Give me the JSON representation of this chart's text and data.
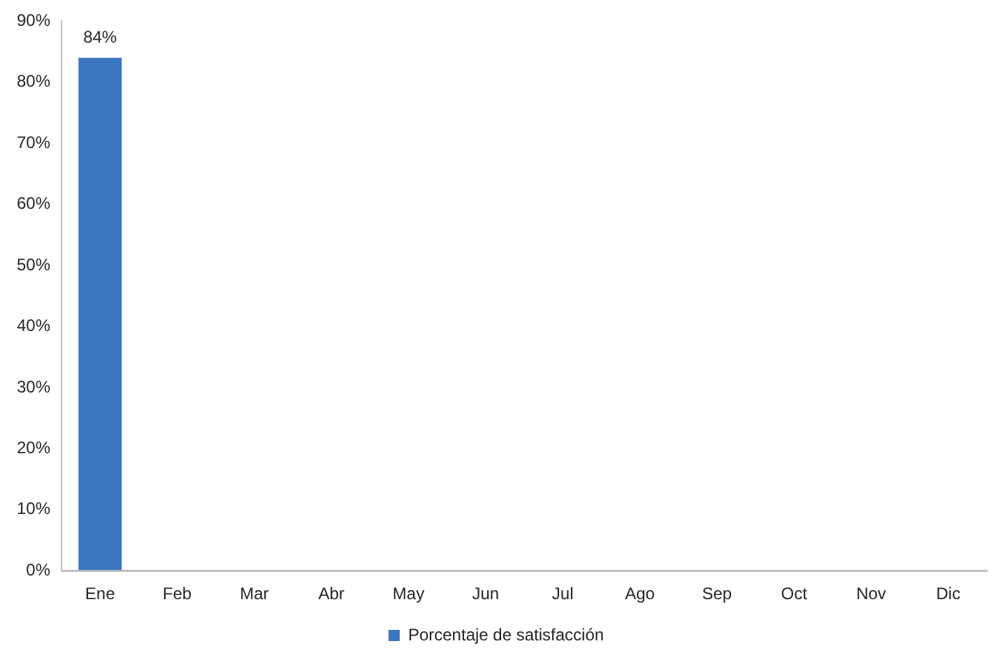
{
  "chart_data": {
    "type": "bar",
    "categories": [
      "Ene",
      "Feb",
      "Mar",
      "Abr",
      "May",
      "Jun",
      "Jul",
      "Ago",
      "Sep",
      "Oct",
      "Nov",
      "Dic"
    ],
    "series": [
      {
        "name": "Porcentaje de satisfacción",
        "color": "#3b76c0",
        "values": [
          84,
          null,
          null,
          null,
          null,
          null,
          null,
          null,
          null,
          null,
          null,
          null
        ],
        "value_labels": [
          "84%",
          null,
          null,
          null,
          null,
          null,
          null,
          null,
          null,
          null,
          null,
          null
        ]
      }
    ],
    "ylim": [
      0,
      90
    ],
    "yticks": [
      {
        "value": 0,
        "label": "0%"
      },
      {
        "value": 10,
        "label": "10%"
      },
      {
        "value": 20,
        "label": "20%"
      },
      {
        "value": 30,
        "label": "30%"
      },
      {
        "value": 40,
        "label": "40%"
      },
      {
        "value": 50,
        "label": "50%"
      },
      {
        "value": 60,
        "label": "60%"
      },
      {
        "value": 70,
        "label": "70%"
      },
      {
        "value": 80,
        "label": "80%"
      },
      {
        "value": 90,
        "label": "90%"
      }
    ],
    "legend": "bottom"
  }
}
